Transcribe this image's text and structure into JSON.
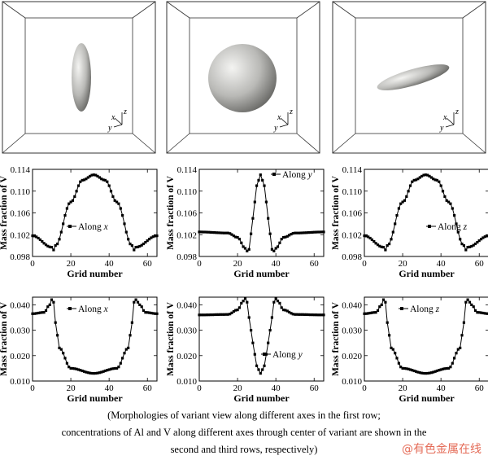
{
  "row1": {
    "panels": [
      {
        "axes": {
          "x": "x",
          "y": "y",
          "z": "z"
        }
      },
      {
        "axes": {
          "x": "x",
          "y": "y",
          "z": "z"
        }
      },
      {
        "axes": {
          "x": "x",
          "y": "y",
          "z": "z"
        }
      }
    ]
  },
  "chart_data": [
    {
      "type": "line",
      "xlabel": "Grid number",
      "ylabel": "Mass fraction of V",
      "xlim": [
        0,
        65
      ],
      "ylim": [
        0.098,
        0.114
      ],
      "xticks": [
        "0",
        "20",
        "40",
        "60"
      ],
      "yticks": [
        "0.098",
        "0.102",
        "0.106",
        "0.110",
        "0.114"
      ],
      "legend": {
        "prefix": "Along ",
        "var": "x",
        "position": "left-middle"
      },
      "series": [
        {
          "name": "Along x",
          "x": [
            0,
            10,
            11,
            12,
            20,
            26,
            32,
            38,
            44,
            52,
            53,
            54,
            65
          ],
          "y": [
            0.1018,
            0.0997,
            0.0992,
            0.1,
            0.108,
            0.112,
            0.113,
            0.112,
            0.108,
            0.1,
            0.0992,
            0.0997,
            0.1018
          ]
        }
      ]
    },
    {
      "type": "line",
      "xlabel": "Grid number",
      "ylabel": "Mass fraction of V",
      "xlim": [
        0,
        65
      ],
      "ylim": [
        0.098,
        0.114
      ],
      "xticks": [
        "0",
        "20",
        "40",
        "60"
      ],
      "yticks": [
        "0.098",
        "0.102",
        "0.106",
        "0.110",
        "0.114"
      ],
      "legend": {
        "prefix": "Along ",
        "var": "y",
        "position": "top-right"
      },
      "series": [
        {
          "name": "Along y",
          "x": [
            0,
            15,
            20,
            24,
            25,
            26,
            28,
            30,
            32,
            34,
            36,
            38,
            39,
            40,
            44,
            50,
            65
          ],
          "y": [
            0.1025,
            0.1023,
            0.1015,
            0.0995,
            0.099,
            0.0993,
            0.105,
            0.111,
            0.113,
            0.111,
            0.105,
            0.0993,
            0.099,
            0.0995,
            0.1015,
            0.1023,
            0.1025
          ]
        }
      ]
    },
    {
      "type": "line",
      "xlabel": "Grid number",
      "ylabel": "Mass fraction of V",
      "xlim": [
        0,
        65
      ],
      "ylim": [
        0.098,
        0.114
      ],
      "xticks": [
        "0",
        "20",
        "40",
        "60"
      ],
      "yticks": [
        "0.098",
        "0.102",
        "0.106",
        "0.110",
        "0.114"
      ],
      "legend": {
        "prefix": "Along ",
        "var": "z",
        "position": "right-middle"
      },
      "series": [
        {
          "name": "Along z",
          "x": [
            0,
            10,
            11,
            12,
            20,
            26,
            32,
            38,
            44,
            52,
            53,
            54,
            65
          ],
          "y": [
            0.1018,
            0.0997,
            0.0992,
            0.1,
            0.108,
            0.112,
            0.113,
            0.112,
            0.108,
            0.1,
            0.0992,
            0.0997,
            0.1018
          ]
        }
      ]
    },
    {
      "type": "line",
      "xlabel": "Grid number",
      "ylabel": "Mass fraction of V",
      "xlim": [
        0,
        65
      ],
      "ylim": [
        0.01,
        0.043
      ],
      "xticks": [
        "0",
        "20",
        "40",
        "60"
      ],
      "yticks": [
        "0.010",
        "0.020",
        "0.030",
        "0.040"
      ],
      "legend": {
        "prefix": "Along ",
        "var": "x",
        "position": "top-middle"
      },
      "series": [
        {
          "name": "Along x",
          "x": [
            0,
            6,
            9,
            10,
            11,
            12,
            14,
            20,
            32,
            44,
            50,
            52,
            53,
            54,
            56,
            59,
            65
          ],
          "y": [
            0.0365,
            0.037,
            0.04,
            0.042,
            0.041,
            0.033,
            0.023,
            0.015,
            0.013,
            0.015,
            0.023,
            0.033,
            0.041,
            0.042,
            0.04,
            0.037,
            0.0365
          ]
        }
      ]
    },
    {
      "type": "line",
      "xlabel": "Grid number",
      "ylabel": "Mass fraction of V",
      "xlim": [
        0,
        65
      ],
      "ylim": [
        0.01,
        0.043
      ],
      "xticks": [
        "0",
        "20",
        "40",
        "60"
      ],
      "yticks": [
        "0.010",
        "0.020",
        "0.030",
        "0.040"
      ],
      "legend": {
        "prefix": "Along ",
        "var": "y",
        "position": "right-middle"
      },
      "series": [
        {
          "name": "Along y",
          "x": [
            0,
            15,
            20,
            23,
            24,
            25,
            26,
            28,
            30,
            32,
            34,
            36,
            38,
            39,
            40,
            41,
            44,
            50,
            65
          ],
          "y": [
            0.036,
            0.0362,
            0.038,
            0.0415,
            0.0425,
            0.041,
            0.035,
            0.025,
            0.016,
            0.013,
            0.016,
            0.025,
            0.035,
            0.041,
            0.0425,
            0.0415,
            0.038,
            0.0362,
            0.036
          ]
        }
      ]
    },
    {
      "type": "line",
      "xlabel": "Grid number",
      "ylabel": "Mass fraction of V",
      "xlim": [
        0,
        65
      ],
      "ylim": [
        0.01,
        0.043
      ],
      "xticks": [
        "0",
        "20",
        "40",
        "60"
      ],
      "yticks": [
        "0.010",
        "0.020",
        "0.030",
        "0.040"
      ],
      "legend": {
        "prefix": "Along ",
        "var": "z",
        "position": "top-middle"
      },
      "series": [
        {
          "name": "Along z",
          "x": [
            0,
            6,
            9,
            10,
            11,
            12,
            14,
            20,
            32,
            44,
            50,
            52,
            53,
            54,
            56,
            59,
            65
          ],
          "y": [
            0.0365,
            0.037,
            0.04,
            0.042,
            0.041,
            0.033,
            0.023,
            0.015,
            0.013,
            0.015,
            0.023,
            0.033,
            0.041,
            0.042,
            0.04,
            0.037,
            0.0365
          ]
        }
      ]
    }
  ],
  "caption": {
    "line1": "(Morphologies of variant view along different axes in the first row;",
    "line2": "concentrations of Al and V along different axes through center of variant are shown in the",
    "line3": "second and third rows, respectively)"
  },
  "watermark": "@有色金属在线"
}
